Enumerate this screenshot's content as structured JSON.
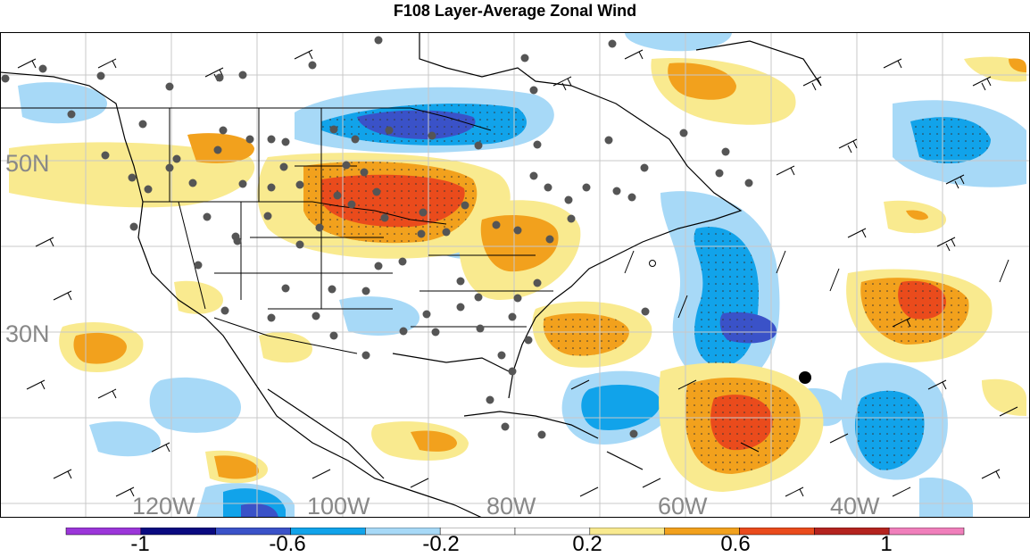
{
  "title": "F108 Layer-Average Zonal Wind",
  "lat_labels": [
    "50N",
    "30N"
  ],
  "lon_labels": [
    "120W",
    "100W",
    "80W",
    "60W",
    "40W"
  ],
  "colorbar": {
    "colors": [
      "#9b36d9",
      "#0a0a80",
      "#3a52c8",
      "#11a3ea",
      "#a7d9f7",
      "#ffffff",
      "#ffffff",
      "#f9ea8f",
      "#f2a11d",
      "#ea4b1c",
      "#b4231f",
      "#f07fbb"
    ],
    "tick_labels": [
      "-1",
      "-0.6",
      "-0.2",
      "0.2",
      "0.6",
      "1"
    ]
  }
}
